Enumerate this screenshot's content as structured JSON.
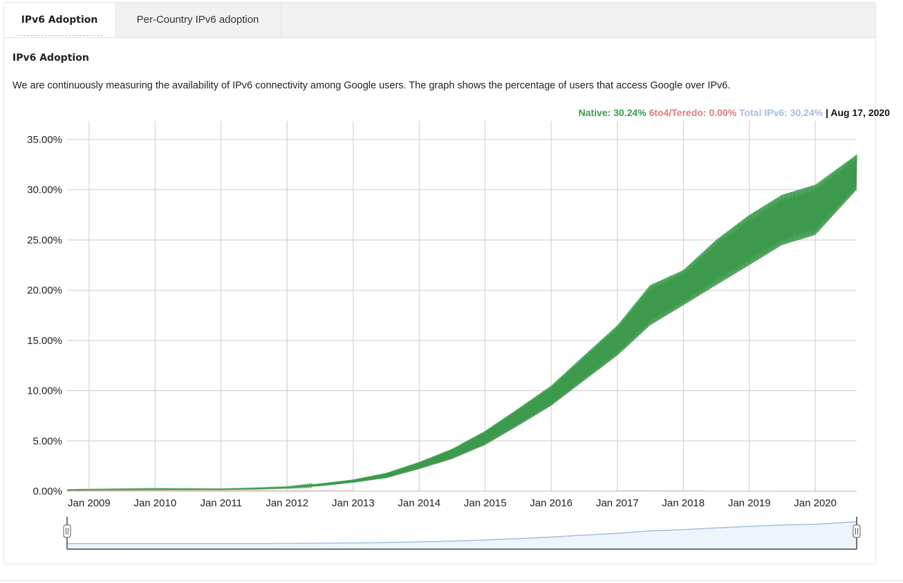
{
  "tabs": [
    {
      "label": "IPv6 Adoption",
      "active": true
    },
    {
      "label": "Per-Country IPv6 adoption",
      "active": false
    }
  ],
  "section_title": "IPv6 Adoption",
  "description": "We are continuously measuring the availability of IPv6 connectivity among Google users. The graph shows the percentage of users that access Google over IPv6.",
  "legend": {
    "native": "Native: 30.24%",
    "teredo": "6to4/Teredo: 0.00%",
    "total": "Total IPv6: 30.24%",
    "separator": " | ",
    "date": "Aug 17, 2020"
  },
  "colors": {
    "native": "#3d9a4d",
    "teredo": "#e07a78",
    "total": "#a6bde0",
    "grid": "#cccccc",
    "range_fill": "#eef4fb"
  },
  "chart_data": {
    "type": "area",
    "y_ticks": [
      "0.00%",
      "5.00%",
      "10.00%",
      "15.00%",
      "20.00%",
      "25.00%",
      "30.00%",
      "35.00%"
    ],
    "x_ticks": [
      "Jan 2009",
      "Jan 2010",
      "Jan 2011",
      "Jan 2012",
      "Jan 2013",
      "Jan 2014",
      "Jan 2015",
      "Jan 2016",
      "Jan 2017",
      "Jan 2018",
      "Jan 2019",
      "Jan 2020"
    ],
    "ylim": [
      0,
      35
    ],
    "xlim": [
      "2008-09-01",
      "2020-08-17"
    ],
    "grid": true,
    "series": [
      {
        "name": "Native",
        "color": "#3d9a4d",
        "points": [
          {
            "x": "2008-09-01",
            "low": 0.1,
            "high": 0.15
          },
          {
            "x": "2009-01-01",
            "low": 0.12,
            "high": 0.18
          },
          {
            "x": "2010-01-01",
            "low": 0.15,
            "high": 0.25
          },
          {
            "x": "2011-01-01",
            "low": 0.15,
            "high": 0.22
          },
          {
            "x": "2011-07-01",
            "low": 0.2,
            "high": 0.3
          },
          {
            "x": "2012-01-01",
            "low": 0.3,
            "high": 0.42
          },
          {
            "x": "2012-07-01",
            "low": 0.5,
            "high": 0.75
          },
          {
            "x": "2013-01-01",
            "low": 0.85,
            "high": 1.15
          },
          {
            "x": "2013-07-01",
            "low": 1.3,
            "high": 1.8
          },
          {
            "x": "2014-01-01",
            "low": 2.2,
            "high": 2.9
          },
          {
            "x": "2014-07-01",
            "low": 3.2,
            "high": 4.2
          },
          {
            "x": "2015-01-01",
            "low": 4.6,
            "high": 6.0
          },
          {
            "x": "2015-07-01",
            "low": 6.5,
            "high": 8.2
          },
          {
            "x": "2016-01-01",
            "low": 8.5,
            "high": 10.5
          },
          {
            "x": "2016-07-01",
            "low": 11.0,
            "high": 13.5
          },
          {
            "x": "2017-01-01",
            "low": 13.5,
            "high": 16.5
          },
          {
            "x": "2017-07-01",
            "low": 16.5,
            "high": 20.5
          },
          {
            "x": "2018-01-01",
            "low": 18.5,
            "high": 22.0
          },
          {
            "x": "2018-07-01",
            "low": 20.5,
            "high": 25.0
          },
          {
            "x": "2019-01-01",
            "low": 22.5,
            "high": 27.5
          },
          {
            "x": "2019-07-01",
            "low": 24.5,
            "high": 29.5
          },
          {
            "x": "2020-01-01",
            "low": 25.5,
            "high": 30.5
          },
          {
            "x": "2020-08-17",
            "low": 30.0,
            "high": 33.5
          }
        ]
      },
      {
        "name": "6to4/Teredo",
        "color": "#e07a78",
        "points": [
          {
            "x": "2008-09-01",
            "value": 0.02
          },
          {
            "x": "2020-08-17",
            "value": 0.0
          }
        ]
      }
    ],
    "range_selector": {
      "start": "2008-09-01",
      "end": "2020-08-17"
    }
  }
}
